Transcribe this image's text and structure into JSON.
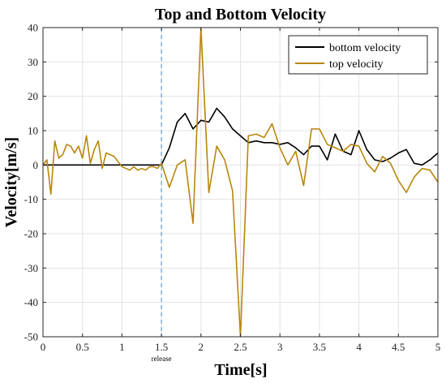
{
  "chart_data": {
    "type": "line",
    "title": "Top and Bottom Velocity",
    "xlabel": "Time[s]",
    "ylabel": "Velocity[m/s]",
    "xlim": [
      0,
      5
    ],
    "ylim": [
      -50,
      40
    ],
    "xticks": [
      0,
      0.5,
      1,
      1.5,
      2,
      2.5,
      3,
      3.5,
      4,
      4.5,
      5
    ],
    "xtick_labels": [
      "0",
      "0.5",
      "1",
      "1.5",
      "2",
      "2.5",
      "3",
      "3.5",
      "4",
      "4.5",
      "5"
    ],
    "yticks": [
      -50,
      -40,
      -30,
      -20,
      -10,
      0,
      10,
      20,
      30,
      40
    ],
    "ytick_labels": [
      "-50",
      "-40",
      "-30",
      "-20",
      "-10",
      "0",
      "10",
      "20",
      "30",
      "40"
    ],
    "grid": true,
    "legend_position": "top-right",
    "annotations": [
      {
        "type": "vline",
        "x": 1.5,
        "label": "release",
        "color": "#5b9bd5",
        "style": "dashed"
      }
    ],
    "series": [
      {
        "name": "bottom velocity",
        "color": "#000000",
        "x": [
          0,
          1.45,
          1.5,
          1.6,
          1.7,
          1.8,
          1.9,
          2.0,
          2.1,
          2.2,
          2.3,
          2.4,
          2.5,
          2.6,
          2.7,
          2.8,
          2.9,
          3.0,
          3.1,
          3.2,
          3.3,
          3.4,
          3.5,
          3.6,
          3.7,
          3.8,
          3.9,
          4.0,
          4.1,
          4.2,
          4.3,
          4.4,
          4.5,
          4.6,
          4.7,
          4.8,
          4.9,
          5.0
        ],
        "y": [
          0,
          0,
          0,
          5,
          12.5,
          15,
          10.5,
          13,
          12.5,
          16.5,
          14,
          10.5,
          8.5,
          6.5,
          7,
          6.5,
          6.5,
          6,
          6.5,
          5,
          3,
          5.5,
          5.5,
          1.5,
          9,
          4,
          3,
          10,
          4.5,
          1.5,
          1,
          2,
          3.5,
          4.5,
          0.5,
          0,
          1.5,
          3.5
        ]
      },
      {
        "name": "top velocity",
        "color": "#b8860b",
        "x": [
          0,
          0.05,
          0.1,
          0.15,
          0.2,
          0.25,
          0.3,
          0.35,
          0.4,
          0.45,
          0.5,
          0.55,
          0.6,
          0.65,
          0.7,
          0.75,
          0.8,
          0.85,
          0.9,
          1.0,
          1.05,
          1.1,
          1.15,
          1.2,
          1.25,
          1.3,
          1.35,
          1.4,
          1.45,
          1.5,
          1.6,
          1.7,
          1.8,
          1.9,
          2.0,
          2.1,
          2.2,
          2.3,
          2.4,
          2.5,
          2.6,
          2.7,
          2.8,
          2.9,
          3.0,
          3.1,
          3.2,
          3.3,
          3.4,
          3.5,
          3.6,
          3.7,
          3.8,
          3.9,
          4.0,
          4.1,
          4.2,
          4.3,
          4.4,
          4.5,
          4.6,
          4.7,
          4.8,
          4.9,
          5.0
        ],
        "y": [
          0,
          1.5,
          -8.5,
          7,
          2,
          3,
          6,
          5.5,
          3.5,
          5.5,
          2,
          8.5,
          0.5,
          4.5,
          7,
          -1,
          3.5,
          3,
          2.5,
          -0.5,
          -1,
          -1.5,
          -0.5,
          -1.5,
          -1,
          -1.5,
          -0.5,
          -0.5,
          -1,
          0.5,
          -6.5,
          0,
          1.5,
          -17,
          40,
          -8,
          5.5,
          1.5,
          -7.5,
          -50,
          8.5,
          9,
          8,
          12,
          5,
          0,
          4,
          -6,
          10.5,
          10.5,
          6,
          5,
          4,
          6,
          5.5,
          0.5,
          -2,
          2.5,
          0.5,
          -4.5,
          -8,
          -3.5,
          -1,
          -1.5,
          -5
        ]
      }
    ]
  }
}
